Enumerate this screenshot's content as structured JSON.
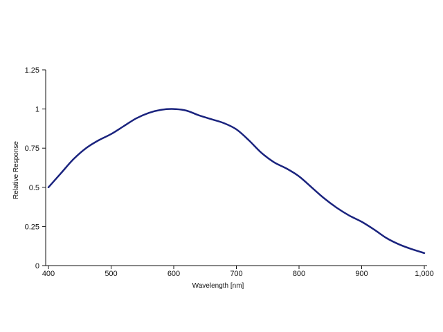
{
  "chart_data": {
    "type": "line",
    "title": "",
    "xlabel": "Wavelength [nm]",
    "ylabel": "Relative Response",
    "xlim": [
      400,
      1000
    ],
    "ylim": [
      0,
      1.25
    ],
    "x_ticks": [
      400,
      500,
      600,
      700,
      800,
      900,
      1000
    ],
    "x_tick_labels": [
      "400",
      "500",
      "600",
      "700",
      "800",
      "900",
      "1,000"
    ],
    "y_ticks": [
      0,
      0.25,
      0.5,
      0.75,
      1,
      1.25
    ],
    "y_tick_labels": [
      "0",
      "0.25",
      "0.5",
      "0.75",
      "1",
      "1.25"
    ],
    "grid": false,
    "series": [
      {
        "color": "#1a237e",
        "x": [
          400,
          420,
          440,
          460,
          480,
          500,
          520,
          540,
          560,
          580,
          600,
          620,
          640,
          660,
          680,
          700,
          720,
          740,
          760,
          780,
          800,
          820,
          840,
          860,
          880,
          900,
          920,
          940,
          960,
          980,
          1000
        ],
        "y": [
          0.5,
          0.59,
          0.68,
          0.75,
          0.8,
          0.84,
          0.89,
          0.94,
          0.975,
          0.995,
          1.0,
          0.99,
          0.96,
          0.935,
          0.91,
          0.87,
          0.8,
          0.72,
          0.66,
          0.62,
          0.57,
          0.5,
          0.43,
          0.37,
          0.32,
          0.28,
          0.23,
          0.175,
          0.135,
          0.105,
          0.08
        ]
      }
    ]
  }
}
